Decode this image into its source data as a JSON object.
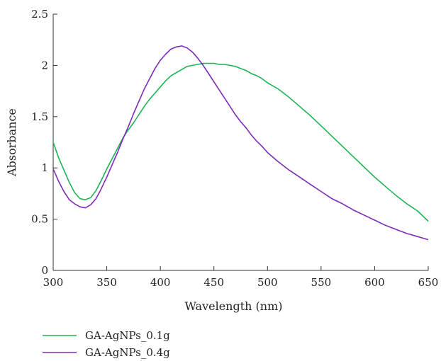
{
  "chart_data": {
    "type": "line",
    "title": "",
    "xlabel": "Wavelength (nm)",
    "ylabel": "Absorbance",
    "xlim": [
      300,
      650
    ],
    "ylim": [
      0,
      2.5
    ],
    "xticks": [
      "300",
      "350",
      "400",
      "450",
      "500",
      "550",
      "600",
      "650"
    ],
    "yticks": [
      "0",
      "0.5",
      "1",
      "1.5",
      "2",
      "2.5"
    ],
    "grid": false,
    "legend_position": "bottom-left",
    "series": [
      {
        "name": "GA-AgNPs_0.1g",
        "color": "#1db354",
        "x": [
          300,
          305,
          310,
          315,
          320,
          325,
          330,
          335,
          340,
          345,
          350,
          355,
          360,
          365,
          370,
          375,
          380,
          385,
          390,
          395,
          400,
          405,
          410,
          415,
          420,
          425,
          430,
          435,
          440,
          445,
          450,
          455,
          460,
          465,
          470,
          475,
          480,
          485,
          490,
          495,
          500,
          510,
          520,
          530,
          540,
          550,
          560,
          570,
          580,
          590,
          600,
          610,
          620,
          630,
          640,
          650
        ],
        "y": [
          1.25,
          1.1,
          0.98,
          0.86,
          0.76,
          0.7,
          0.69,
          0.71,
          0.78,
          0.88,
          0.99,
          1.09,
          1.19,
          1.29,
          1.37,
          1.44,
          1.52,
          1.6,
          1.67,
          1.73,
          1.79,
          1.85,
          1.9,
          1.93,
          1.96,
          1.99,
          2.0,
          2.01,
          2.02,
          2.02,
          2.02,
          2.01,
          2.01,
          2.0,
          1.99,
          1.97,
          1.95,
          1.92,
          1.9,
          1.87,
          1.83,
          1.77,
          1.69,
          1.6,
          1.51,
          1.41,
          1.31,
          1.21,
          1.11,
          1.01,
          0.91,
          0.82,
          0.73,
          0.65,
          0.58,
          0.48
        ]
      },
      {
        "name": "GA-AgNPs_0.4g",
        "color": "#7d2bb8",
        "x": [
          300,
          305,
          310,
          315,
          320,
          325,
          330,
          335,
          340,
          345,
          350,
          355,
          360,
          365,
          370,
          375,
          380,
          385,
          390,
          395,
          400,
          405,
          410,
          415,
          420,
          425,
          430,
          435,
          440,
          445,
          450,
          455,
          460,
          465,
          470,
          475,
          480,
          485,
          490,
          495,
          500,
          510,
          520,
          530,
          540,
          550,
          560,
          570,
          580,
          590,
          600,
          610,
          620,
          630,
          640,
          650
        ],
        "y": [
          0.99,
          0.87,
          0.77,
          0.69,
          0.65,
          0.62,
          0.61,
          0.64,
          0.7,
          0.8,
          0.91,
          1.03,
          1.15,
          1.28,
          1.4,
          1.53,
          1.65,
          1.77,
          1.87,
          1.97,
          2.05,
          2.11,
          2.16,
          2.18,
          2.19,
          2.17,
          2.13,
          2.07,
          2.0,
          1.92,
          1.84,
          1.76,
          1.68,
          1.6,
          1.52,
          1.45,
          1.39,
          1.32,
          1.26,
          1.21,
          1.15,
          1.06,
          0.98,
          0.91,
          0.84,
          0.77,
          0.7,
          0.65,
          0.59,
          0.54,
          0.49,
          0.44,
          0.4,
          0.36,
          0.33,
          0.3
        ]
      }
    ]
  }
}
